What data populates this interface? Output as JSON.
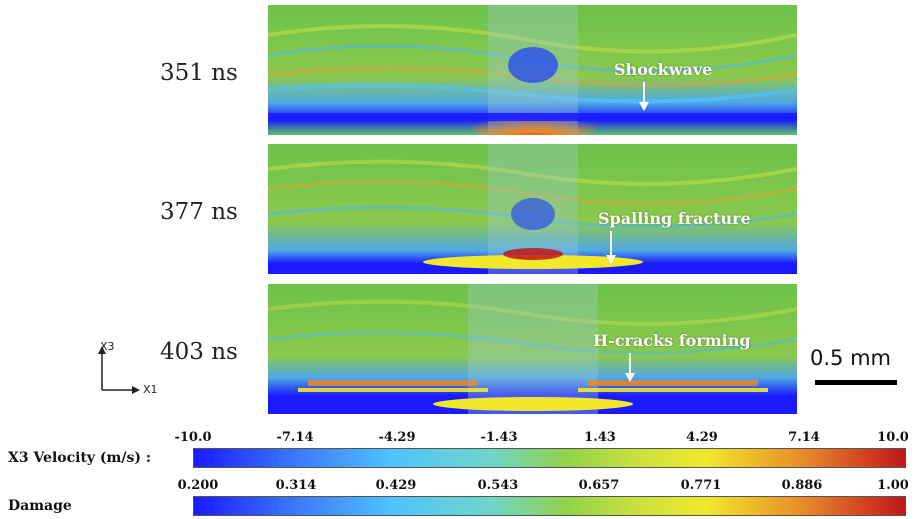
{
  "time_labels": [
    "351 ns",
    "377 ns",
    "403 ns"
  ],
  "annotations": [
    "Shockwave",
    "Spalling fracture",
    "H-cracks forming"
  ],
  "axes": {
    "vertical": "X3",
    "horizontal": "X1"
  },
  "scale_bar": {
    "label": "0.5 mm"
  },
  "colorbars": [
    {
      "label": "X3 Velocity (m/s) :",
      "ticks": [
        "-10.0",
        "-7.14",
        "-4.29",
        "-1.43",
        "1.43",
        "4.29",
        "7.14",
        "10.0"
      ]
    },
    {
      "label": "Damage",
      "ticks": [
        "0.200",
        "0.314",
        "0.429",
        "0.543",
        "0.657",
        "0.771",
        "0.886",
        "1.00"
      ]
    }
  ],
  "colors": {
    "deep_blue": "#1a1aff",
    "light_blue": "#4fc3ff",
    "green": "#5ec85a",
    "yellow": "#f2e82b",
    "orange": "#e8882a",
    "red": "#c0161a"
  }
}
